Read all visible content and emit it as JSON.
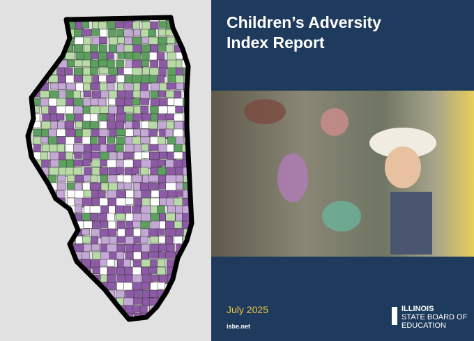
{
  "cover": {
    "title_lines": [
      "Children’s Adversity",
      "Index Report"
    ],
    "date": "July 2025",
    "website": "isbe.net",
    "logo": {
      "line1": "ILLINOIS",
      "line2": "STATE BOARD OF",
      "line3": "EDUCATION"
    }
  }
}
